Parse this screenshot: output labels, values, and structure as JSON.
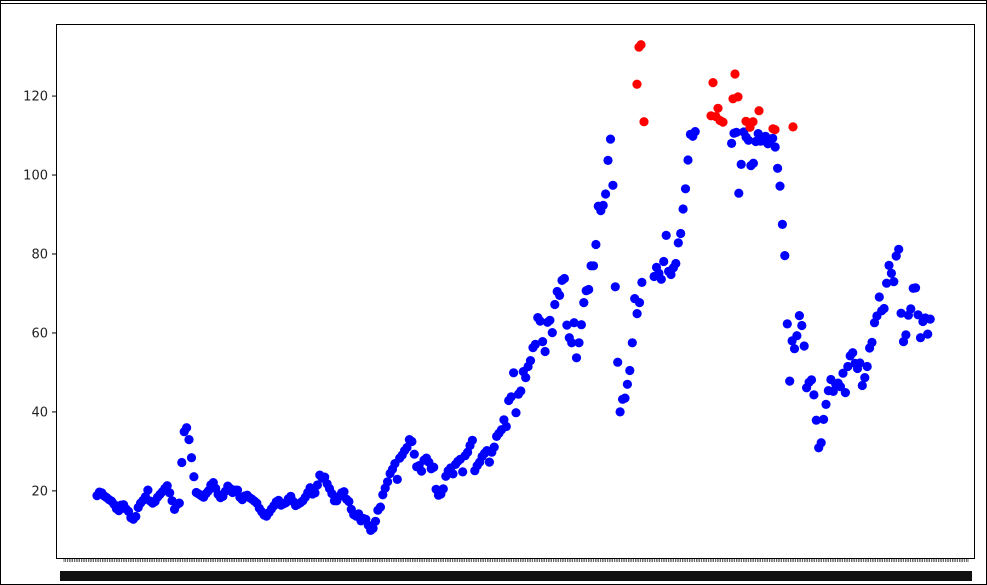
{
  "colors": {
    "normal": "#0000ff",
    "highlight": "#ff0000",
    "axes": "#000000",
    "background": "#ffffff"
  },
  "chart_data": {
    "type": "scatter",
    "title": "",
    "xlabel": "",
    "ylabel": "",
    "ylim": [
      3,
      138
    ],
    "y_ticks": [
      "20",
      "40",
      "60",
      "80",
      "100",
      "120"
    ],
    "x_tick_labels_legible": false,
    "grid": false,
    "legend": "none",
    "series": [
      {
        "color": "#0000ff",
        "values": [
          18.8,
          19.7,
          19.5,
          18.7,
          18.3,
          17.8,
          17.4,
          16.6,
          15.5,
          15.0,
          16.4,
          16.5,
          15.4,
          14.8,
          13.2,
          12.8,
          13.5,
          15.8,
          16.9,
          17.6,
          18.5,
          20.2,
          17.4,
          16.9,
          17.3,
          18.4,
          19.1,
          19.8,
          20.6,
          21.3,
          19.5,
          17.5,
          15.3,
          16.5,
          16.9,
          27.2,
          35.0,
          36.0,
          33.0,
          28.4,
          23.6,
          19.6,
          19.2,
          18.8,
          18.4,
          19.3,
          20.0,
          21.5,
          22.1,
          20.6,
          19.1,
          18.3,
          18.6,
          19.9,
          21.2,
          20.6,
          19.6,
          20.2,
          20.2,
          18.4,
          17.8,
          18.7,
          18.9,
          18.3,
          17.9,
          17.4,
          16.9,
          15.6,
          14.7,
          13.9,
          13.6,
          14.5,
          15.4,
          16.2,
          17.2,
          17.6,
          16.4,
          16.7,
          17.0,
          18.0,
          18.6,
          17.3,
          16.3,
          16.6,
          17.0,
          17.5,
          18.4,
          19.6,
          20.8,
          19.2,
          19.5,
          21.5,
          24.0,
          23.2,
          23.5,
          21.8,
          20.6,
          19.3,
          17.5,
          17.5,
          18.6,
          19.5,
          19.8,
          17.9,
          17.3,
          15.3,
          14.0,
          13.6,
          14.2,
          12.4,
          13.0,
          12.8,
          11.3,
          10.0,
          10.5,
          12.3,
          15.1,
          15.9,
          19.0,
          20.7,
          22.3,
          24.4,
          25.5,
          26.9,
          22.9,
          28.3,
          29.1,
          30.2,
          31.0,
          33.0,
          32.5,
          29.3,
          26.1,
          26.4,
          25.0,
          27.8,
          28.3,
          27.3,
          25.6,
          26.0,
          20.4,
          18.9,
          19.2,
          20.5,
          23.7,
          25.1,
          25.8,
          24.3,
          26.7,
          27.5,
          28.0,
          24.8,
          28.9,
          29.8,
          31.5,
          32.8,
          25.1,
          26.4,
          27.3,
          28.7,
          29.5,
          30.2,
          27.3,
          29.8,
          31.1,
          33.8,
          34.6,
          35.5,
          38.0,
          36.3,
          42.9,
          43.8,
          49.9,
          39.8,
          44.5,
          45.3,
          50.2,
          48.7,
          51.5,
          53.0,
          56.3,
          57.1,
          63.9,
          63.0,
          57.8,
          55.3,
          62.7,
          63.2,
          60.1,
          67.2,
          70.5,
          69.5,
          73.3,
          73.8,
          62.0,
          58.8,
          57.5,
          62.6,
          53.7,
          57.5,
          62.1,
          67.7,
          70.7,
          71.0,
          77.0,
          77.0,
          82.4,
          92.1,
          91.0,
          92.3,
          95.2,
          103.7,
          109.1,
          97.4,
          71.7,
          52.6,
          40.0,
          43.2,
          43.5,
          47.0,
          50.5,
          57.5,
          68.7,
          64.9,
          67.7,
          72.8,
          74.3,
          76.6,
          75.1,
          73.6,
          78.1,
          84.7,
          75.6,
          74.8,
          76.5,
          77.6,
          82.8,
          85.2,
          91.4,
          96.5,
          103.8,
          110.3,
          109.8,
          111.0,
          108.0,
          110.6,
          110.8,
          95.4,
          102.7,
          110.9,
          109.6,
          108.8,
          102.4,
          103.0,
          108.5,
          110.5,
          108.6,
          108.7,
          109.8,
          107.9,
          108.8,
          109.3,
          107.1,
          101.7,
          97.2,
          87.5,
          79.6,
          62.3,
          47.8,
          58.0,
          56.0,
          59.3,
          64.4,
          61.9,
          56.7,
          46.1,
          47.5,
          48.1,
          44.3,
          37.9,
          30.9,
          32.2,
          38.1,
          41.9,
          45.4,
          48.2,
          45.2,
          47.0,
          47.3,
          46.4,
          49.8,
          44.9,
          51.5,
          54.2,
          55.0,
          52.3,
          51.0,
          52.4,
          46.7,
          48.7,
          51.5,
          56.2,
          57.6,
          62.6,
          64.3,
          69.1,
          65.6,
          66.2,
          72.6,
          77.1,
          75.1,
          73.0,
          79.5,
          81.2,
          65.0,
          57.8,
          59.5,
          64.5,
          66.1,
          71.3,
          71.4,
          64.6,
          58.8,
          62.9,
          63.8,
          59.7,
          63.5
        ]
      },
      {
        "color": "#ff0000",
        "values": [
          123.0,
          132.4,
          133.0,
          113.5,
          115.0,
          123.4,
          114.8,
          116.9,
          113.8,
          113.4,
          119.3,
          125.6,
          119.8,
          113.6,
          112.1,
          113.5,
          116.3,
          111.7,
          111.5,
          112.2
        ]
      }
    ]
  }
}
